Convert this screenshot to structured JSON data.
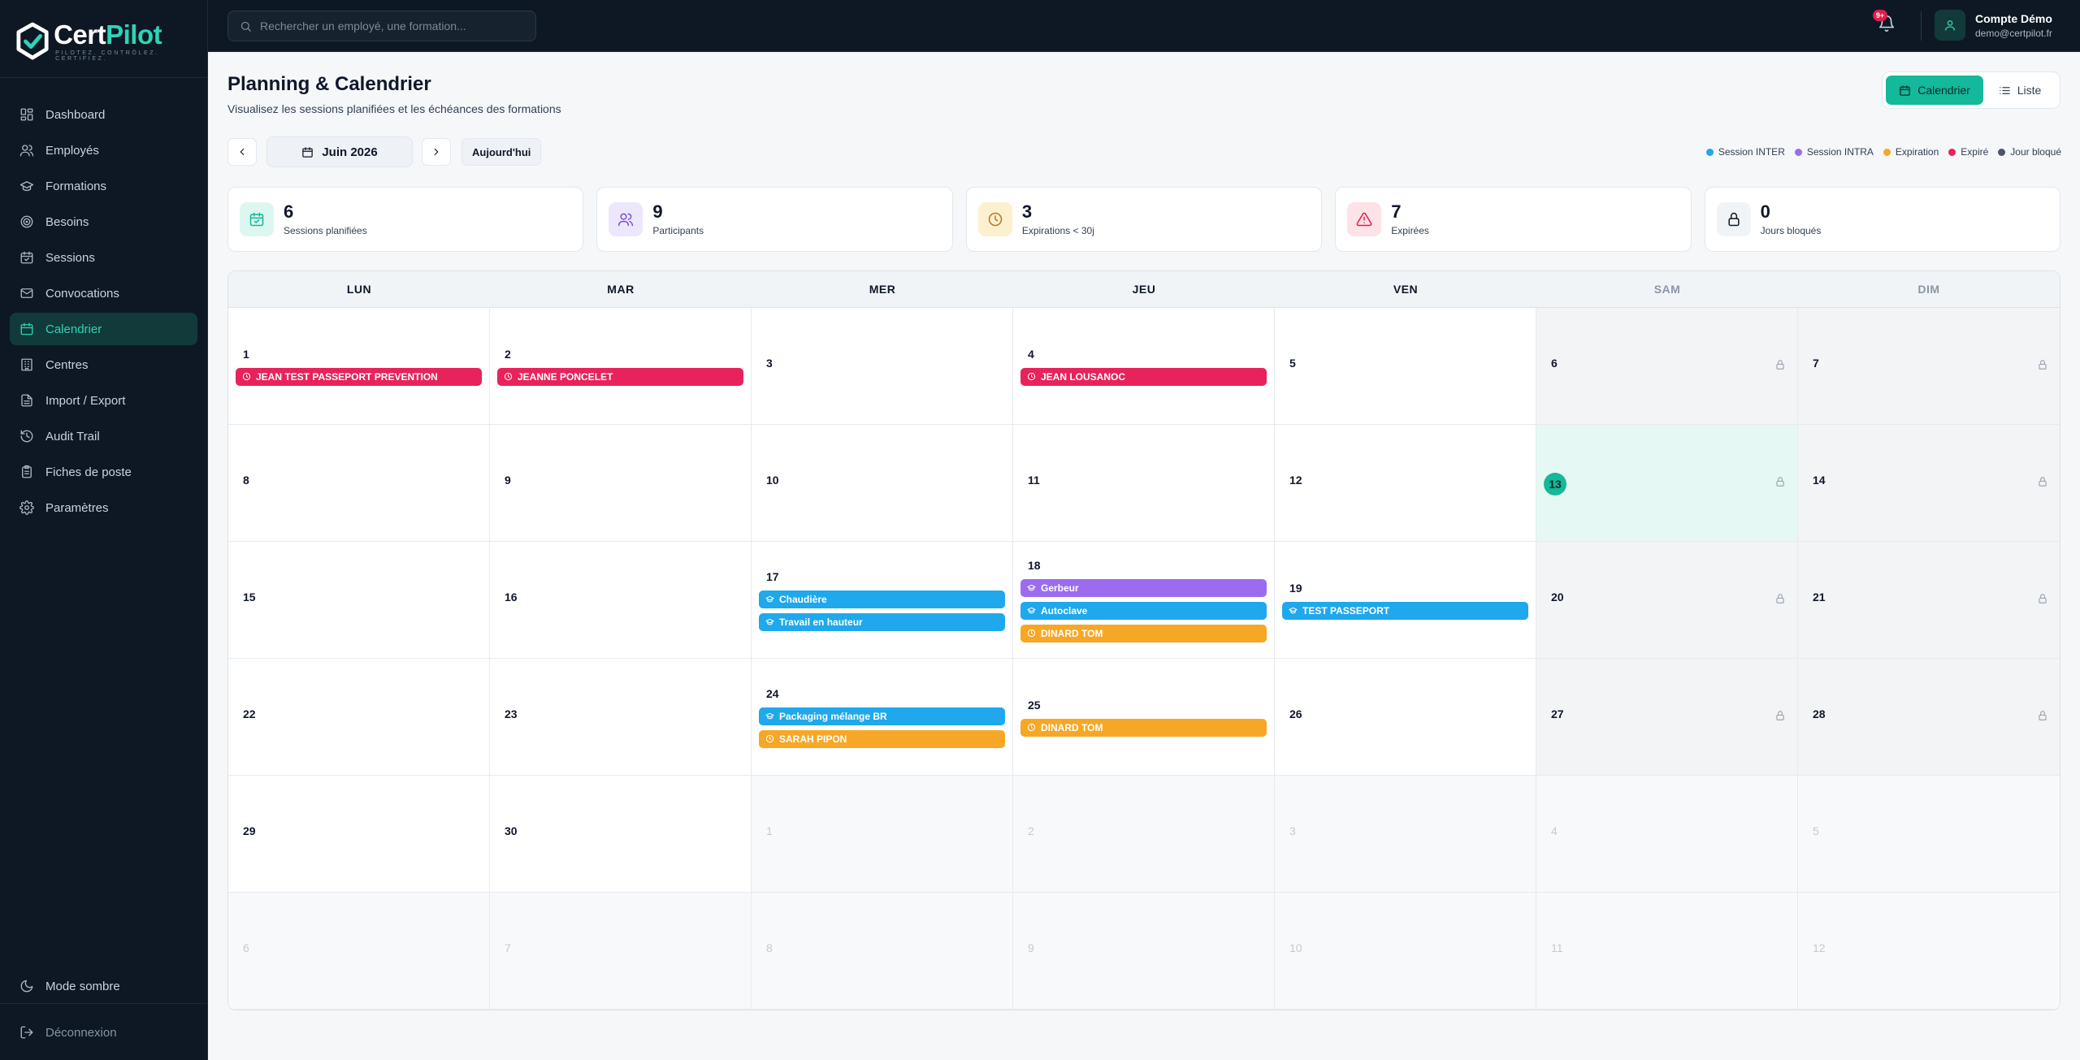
{
  "brand": {
    "name_part1": "Cert",
    "name_part2": "Pilot",
    "tagline": "PILOTEZ. CONTRÔLEZ. CERTIFIEZ.",
    "accent": "#2ed3b7"
  },
  "sidebar": {
    "items": [
      {
        "label": "Dashboard",
        "icon": "dashboard-icon",
        "active": false
      },
      {
        "label": "Employés",
        "icon": "users-icon",
        "active": false
      },
      {
        "label": "Formations",
        "icon": "graduation-cap-icon",
        "active": false
      },
      {
        "label": "Besoins",
        "icon": "target-icon",
        "active": false
      },
      {
        "label": "Sessions",
        "icon": "calendar-check-icon",
        "active": false
      },
      {
        "label": "Convocations",
        "icon": "mail-icon",
        "active": false
      },
      {
        "label": "Calendrier",
        "icon": "calendar-icon",
        "active": true
      },
      {
        "label": "Centres",
        "icon": "building-icon",
        "active": false
      },
      {
        "label": "Import / Export",
        "icon": "file-icon",
        "active": false
      },
      {
        "label": "Audit Trail",
        "icon": "history-icon",
        "active": false
      },
      {
        "label": "Fiches de poste",
        "icon": "clipboard-icon",
        "active": false
      },
      {
        "label": "Paramètres",
        "icon": "gear-icon",
        "active": false
      }
    ],
    "dark_mode_label": "Mode sombre",
    "logout_label": "Déconnexion"
  },
  "topbar": {
    "search_placeholder": "Rechercher un employé, une formation...",
    "notif_badge": "9+",
    "account_name": "Compte Démo",
    "account_email": "demo@certpilot.fr"
  },
  "header": {
    "title": "Planning & Calendrier",
    "subtitle": "Visualisez les sessions planifiées et les échéances des formations",
    "view_calendar": "Calendrier",
    "view_list": "Liste"
  },
  "month_nav": {
    "month_label": "Juin 2026",
    "today_label": "Aujourd'hui"
  },
  "legend": [
    {
      "label": "Session INTER",
      "color": "#1fa8ec"
    },
    {
      "label": "Session INTRA",
      "color": "#9b6cf0"
    },
    {
      "label": "Expiration",
      "color": "#f7a726"
    },
    {
      "label": "Expiré",
      "color": "#e8225a"
    },
    {
      "label": "Jour bloqué",
      "color": "#4b5563"
    }
  ],
  "stats": [
    {
      "value": "6",
      "label": "Sessions planifiées",
      "icon": "calendar-check-icon",
      "bg": "#dcf7ef",
      "color": "#14b89a"
    },
    {
      "value": "9",
      "label": "Participants",
      "icon": "users-icon",
      "bg": "#ede7fd",
      "color": "#7c4ddb"
    },
    {
      "value": "3",
      "label": "Expirations < 30j",
      "icon": "clock-icon",
      "bg": "#fdf0cf",
      "color": "#b7791f"
    },
    {
      "value": "7",
      "label": "Expirées",
      "icon": "alert-triangle-icon",
      "bg": "#fde2e7",
      "color": "#e11d48"
    },
    {
      "value": "0",
      "label": "Jours bloqués",
      "icon": "lock-icon",
      "bg": "#f1f4f7",
      "color": "#0f172a"
    }
  ],
  "calendar": {
    "weekdays": [
      "LUN",
      "MAR",
      "MER",
      "JEU",
      "VEN",
      "SAM",
      "DIM"
    ],
    "today": 13,
    "cells": [
      {
        "day": "1",
        "events": [
          {
            "type": "expired",
            "label": "JEAN TEST PASSEPORT PREVENTION"
          }
        ]
      },
      {
        "day": "2",
        "events": [
          {
            "type": "expired",
            "label": "JEANNE PONCELET"
          }
        ]
      },
      {
        "day": "3",
        "events": []
      },
      {
        "day": "4",
        "events": [
          {
            "type": "expired",
            "label": "JEAN LOUSANOC"
          }
        ]
      },
      {
        "day": "5",
        "events": []
      },
      {
        "day": "6",
        "weekend": true,
        "events": []
      },
      {
        "day": "7",
        "weekend": true,
        "events": []
      },
      {
        "day": "8",
        "events": []
      },
      {
        "day": "9",
        "events": []
      },
      {
        "day": "10",
        "events": []
      },
      {
        "day": "11",
        "events": []
      },
      {
        "day": "12",
        "events": []
      },
      {
        "day": "13",
        "weekend": true,
        "today": true,
        "events": []
      },
      {
        "day": "14",
        "weekend": true,
        "events": []
      },
      {
        "day": "15",
        "events": []
      },
      {
        "day": "16",
        "events": []
      },
      {
        "day": "17",
        "events": [
          {
            "type": "inter",
            "label": "Chaudière"
          },
          {
            "type": "inter",
            "label": "Travail en hauteur"
          }
        ]
      },
      {
        "day": "18",
        "events": [
          {
            "type": "intra",
            "label": "Gerbeur"
          },
          {
            "type": "inter",
            "label": "Autoclave"
          },
          {
            "type": "expiration",
            "label": "DINARD TOM"
          }
        ]
      },
      {
        "day": "19",
        "events": [
          {
            "type": "inter",
            "label": "TEST PASSEPORT"
          }
        ]
      },
      {
        "day": "20",
        "weekend": true,
        "events": []
      },
      {
        "day": "21",
        "weekend": true,
        "events": []
      },
      {
        "day": "22",
        "events": []
      },
      {
        "day": "23",
        "events": []
      },
      {
        "day": "24",
        "events": [
          {
            "type": "inter",
            "label": "Packaging mélange BR"
          },
          {
            "type": "expiration",
            "label": "SARAH PIPON"
          }
        ]
      },
      {
        "day": "25",
        "events": [
          {
            "type": "expiration",
            "label": "DINARD TOM"
          }
        ]
      },
      {
        "day": "26",
        "events": []
      },
      {
        "day": "27",
        "weekend": true,
        "events": []
      },
      {
        "day": "28",
        "weekend": true,
        "events": []
      },
      {
        "day": "29",
        "events": []
      },
      {
        "day": "30",
        "events": []
      },
      {
        "day": "1",
        "other": true,
        "events": []
      },
      {
        "day": "2",
        "other": true,
        "events": []
      },
      {
        "day": "3",
        "other": true,
        "events": []
      },
      {
        "day": "4",
        "other": true,
        "events": []
      },
      {
        "day": "5",
        "other": true,
        "events": []
      },
      {
        "day": "6",
        "other": true,
        "events": []
      },
      {
        "day": "7",
        "other": true,
        "events": []
      },
      {
        "day": "8",
        "other": true,
        "events": []
      },
      {
        "day": "9",
        "other": true,
        "events": []
      },
      {
        "day": "10",
        "other": true,
        "events": []
      },
      {
        "day": "11",
        "other": true,
        "events": []
      },
      {
        "day": "12",
        "other": true,
        "events": []
      }
    ]
  }
}
